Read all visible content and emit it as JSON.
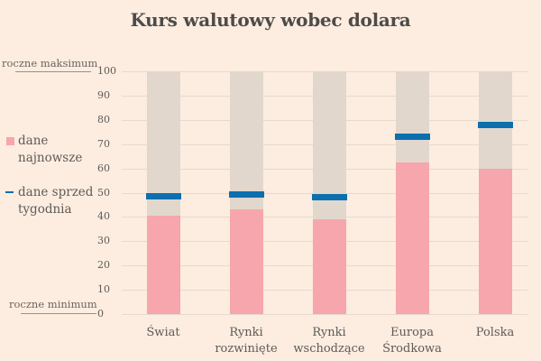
{
  "title": "Kurs walutowy wobec dolara",
  "annotations": {
    "max_label": "roczne maksimum",
    "min_label": "roczne minimum"
  },
  "legend": {
    "latest": "dane najnowsze",
    "latest_line1": "dane",
    "latest_line2": "najnowsze",
    "week_ago": "dane sprzed tygodnia",
    "week_ago_line1": "dane sprzed",
    "week_ago_line2": "tygodnia"
  },
  "colors": {
    "background": "#fcede0",
    "range_bar": "#e1d7cd",
    "latest": "#f6a6ac",
    "week_ago": "#0c6fae"
  },
  "y_ticks": [
    "100",
    "90",
    "80",
    "70",
    "60",
    "50",
    "40",
    "30",
    "20",
    "10",
    "0"
  ],
  "x_labels": [
    {
      "line1": "Świat",
      "line2": ""
    },
    {
      "line1": "Rynki",
      "line2": "rozwinięte"
    },
    {
      "line1": "Rynki",
      "line2": "wschodzące"
    },
    {
      "line1": "Europa",
      "line2": "Środkowa"
    },
    {
      "line1": "Polska",
      "line2": ""
    }
  ],
  "chart_data": {
    "type": "bar",
    "title": "Kurs walutowy wobec dolara",
    "xlabel": "",
    "ylabel": "",
    "ylim": [
      0,
      100
    ],
    "y_ticks": [
      0,
      10,
      20,
      30,
      40,
      50,
      60,
      70,
      80,
      90,
      100
    ],
    "grid": true,
    "legend_position": "left",
    "annotations": [
      "roczne maksimum (100)",
      "roczne minimum (0)"
    ],
    "categories": [
      "Świat",
      "Rynki rozwinięte",
      "Rynki wschodzące",
      "Europa Środkowa",
      "Polska"
    ],
    "series": [
      {
        "name": "dane najnowsze",
        "type": "bar",
        "values": [
          40.7,
          43,
          39,
          62.5,
          60
        ]
      },
      {
        "name": "dane sprzed tygodnia",
        "type": "marker",
        "values": [
          48.5,
          49.2,
          48,
          73,
          78
        ]
      },
      {
        "name": "zakres roczny",
        "type": "range",
        "values": [
          100,
          100,
          100,
          100,
          100
        ]
      }
    ]
  }
}
